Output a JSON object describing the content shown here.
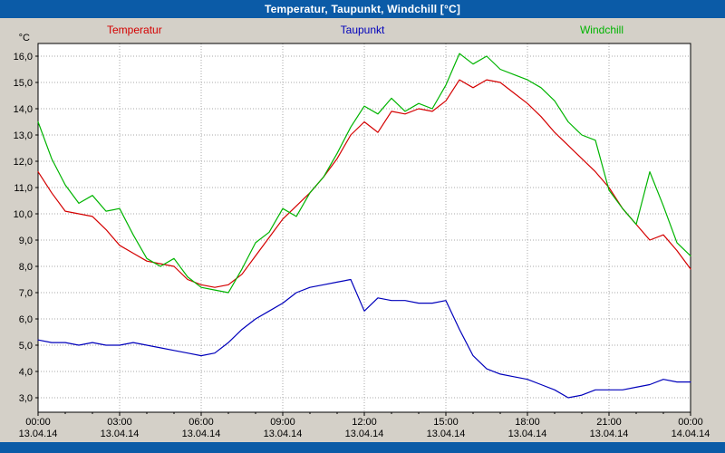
{
  "window": {
    "title": "Temperatur, Taupunkt, Windchill [°C]"
  },
  "colors": {
    "title_bar": "#0b5ba7",
    "page_bg": "#d4d0c8",
    "plot_bg": "#ffffff",
    "grid": "#a8a8a8",
    "frame": "#000000",
    "temperatur": "#d40000",
    "taupunkt": "#0000bb",
    "windchill": "#00b400"
  },
  "chart_data": {
    "type": "line",
    "title": "Temperatur, Taupunkt, Windchill [°C]",
    "ylabel": "°C",
    "xlabel": "",
    "ylim": [
      2.5,
      16.5
    ],
    "x_start_hours": 0,
    "x_end_hours": 24,
    "x_step_hours": 0.5,
    "grid": "dotted",
    "legend_position": "top",
    "yticks": [
      3,
      4,
      5,
      6,
      7,
      8,
      9,
      10,
      11,
      12,
      13,
      14,
      15,
      16
    ],
    "ytick_labels": [
      "3,0",
      "4,0",
      "5,0",
      "6,0",
      "7,0",
      "8,0",
      "9,0",
      "10,0",
      "11,0",
      "12,0",
      "13,0",
      "14,0",
      "15,0",
      "16,0"
    ],
    "xticks": [
      {
        "hour": 0,
        "time": "00:00",
        "date": "13.04.14"
      },
      {
        "hour": 3,
        "time": "03:00",
        "date": "13.04.14"
      },
      {
        "hour": 6,
        "time": "06:00",
        "date": "13.04.14"
      },
      {
        "hour": 9,
        "time": "09:00",
        "date": "13.04.14"
      },
      {
        "hour": 12,
        "time": "12:00",
        "date": "13.04.14"
      },
      {
        "hour": 15,
        "time": "15:00",
        "date": "13.04.14"
      },
      {
        "hour": 18,
        "time": "18:00",
        "date": "13.04.14"
      },
      {
        "hour": 21,
        "time": "21:00",
        "date": "13.04.14"
      },
      {
        "hour": 24,
        "time": "00:00",
        "date": "14.04.14"
      }
    ],
    "series": [
      {
        "name": "Temperatur",
        "color": "#d40000",
        "values": [
          11.6,
          10.8,
          10.1,
          10.0,
          9.9,
          9.4,
          8.8,
          8.5,
          8.2,
          8.1,
          8.0,
          7.5,
          7.3,
          7.2,
          7.3,
          7.7,
          8.4,
          9.1,
          9.8,
          10.3,
          10.8,
          11.4,
          12.1,
          13.0,
          13.5,
          13.1,
          13.9,
          13.8,
          14.0,
          13.9,
          14.3,
          15.1,
          14.8,
          15.1,
          15.0,
          14.6,
          14.2,
          13.7,
          13.1,
          12.6,
          12.1,
          11.6,
          11.0,
          10.2,
          9.6,
          9.0,
          9.2,
          8.6,
          7.9
        ]
      },
      {
        "name": "Taupunkt",
        "color": "#0000bb",
        "values": [
          5.2,
          5.1,
          5.1,
          5.0,
          5.1,
          5.0,
          5.0,
          5.1,
          5.0,
          4.9,
          4.8,
          4.7,
          4.6,
          4.7,
          5.1,
          5.6,
          6.0,
          6.3,
          6.6,
          7.0,
          7.2,
          7.3,
          7.4,
          7.5,
          6.3,
          6.8,
          6.7,
          6.7,
          6.6,
          6.6,
          6.7,
          5.6,
          4.6,
          4.1,
          3.9,
          3.8,
          3.7,
          3.5,
          3.3,
          3.0,
          3.1,
          3.3,
          3.3,
          3.3,
          3.4,
          3.5,
          3.7,
          3.6,
          3.6
        ]
      },
      {
        "name": "Windchill",
        "color": "#00b400",
        "values": [
          13.5,
          12.1,
          11.1,
          10.4,
          10.7,
          10.1,
          10.2,
          9.2,
          8.3,
          8.0,
          8.3,
          7.6,
          7.2,
          7.1,
          7.0,
          7.9,
          8.9,
          9.3,
          10.2,
          9.9,
          10.8,
          11.4,
          12.3,
          13.3,
          14.1,
          13.8,
          14.4,
          13.9,
          14.2,
          14.0,
          14.9,
          16.1,
          15.7,
          16.0,
          15.5,
          15.3,
          15.1,
          14.8,
          14.3,
          13.5,
          13.0,
          12.8,
          10.9,
          10.2,
          9.6,
          11.6,
          10.3,
          8.9,
          8.4
        ]
      }
    ]
  }
}
